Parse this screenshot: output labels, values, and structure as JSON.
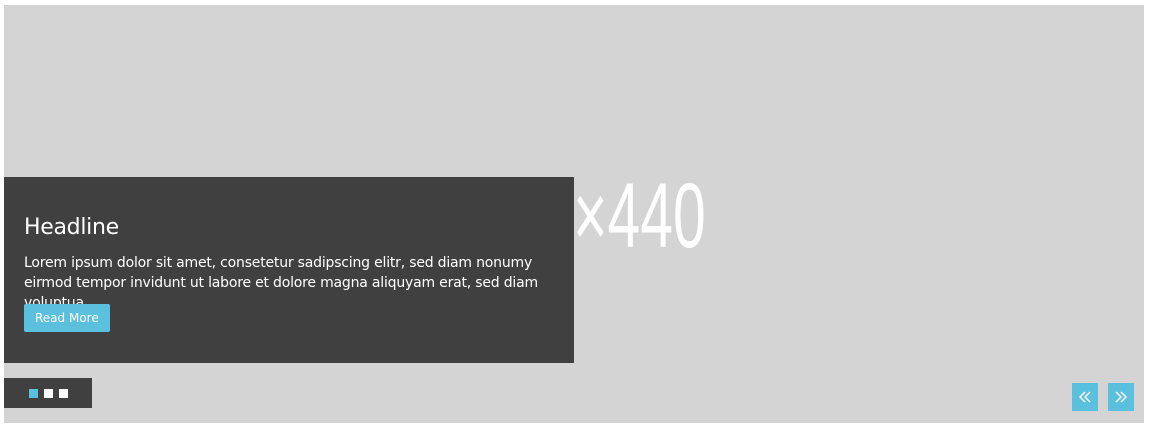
{
  "slider": {
    "placeholder_label": "1200×440",
    "background_color": "#d4d4d4",
    "caption": {
      "headline": "Headline",
      "body": "Lorem ipsum dolor sit amet, consetetur sadipscing elitr, sed diam nonumy eirmod tempor invidunt ut labore et dolore magna aliquyam erat, sed diam voluptua.",
      "button_label": "Read More"
    },
    "pager": {
      "slide_count": 3,
      "active_index": 0
    },
    "nav": {
      "prev_icon": "double-chevron-left-icon",
      "next_icon": "double-chevron-right-icon"
    },
    "accent_color": "#5bc0de",
    "panel_color": "#404040"
  }
}
